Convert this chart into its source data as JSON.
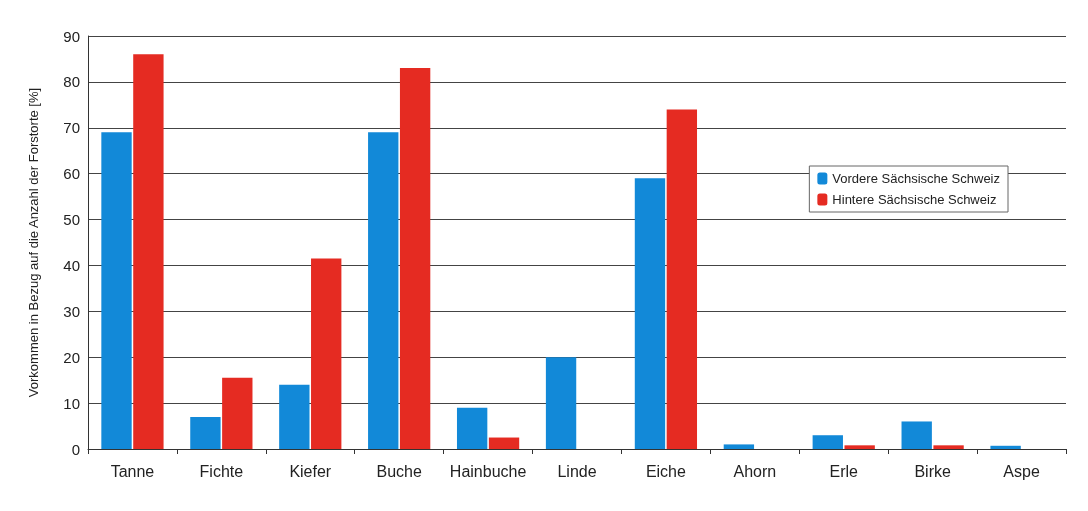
{
  "chart_data": {
    "type": "bar",
    "ylabel": "Vorkommen in Bezug auf die Anzahl der Forstorte [%]",
    "categories": [
      "Tanne",
      "Fichte",
      "Kiefer",
      "Buche",
      "Hainbuche",
      "Linde",
      "Eiche",
      "Ahorn",
      "Erle",
      "Birke",
      "Aspe"
    ],
    "series": [
      {
        "name": "Vordere Sächsische Schweiz",
        "color": "#1289d8",
        "values": [
          69,
          7,
          14,
          69,
          9,
          20,
          59,
          1,
          3,
          6,
          0.7
        ]
      },
      {
        "name": "Hintere Sächsische Schweiz",
        "color": "#e52b22",
        "values": [
          86,
          15.5,
          41.5,
          83,
          2.5,
          0,
          74,
          0,
          0.8,
          0.8,
          0
        ]
      }
    ],
    "ylim": [
      0,
      90
    ],
    "yticks": [
      0,
      10,
      20,
      30,
      40,
      50,
      60,
      70,
      80,
      90
    ],
    "grid": "y",
    "legend": "right"
  }
}
